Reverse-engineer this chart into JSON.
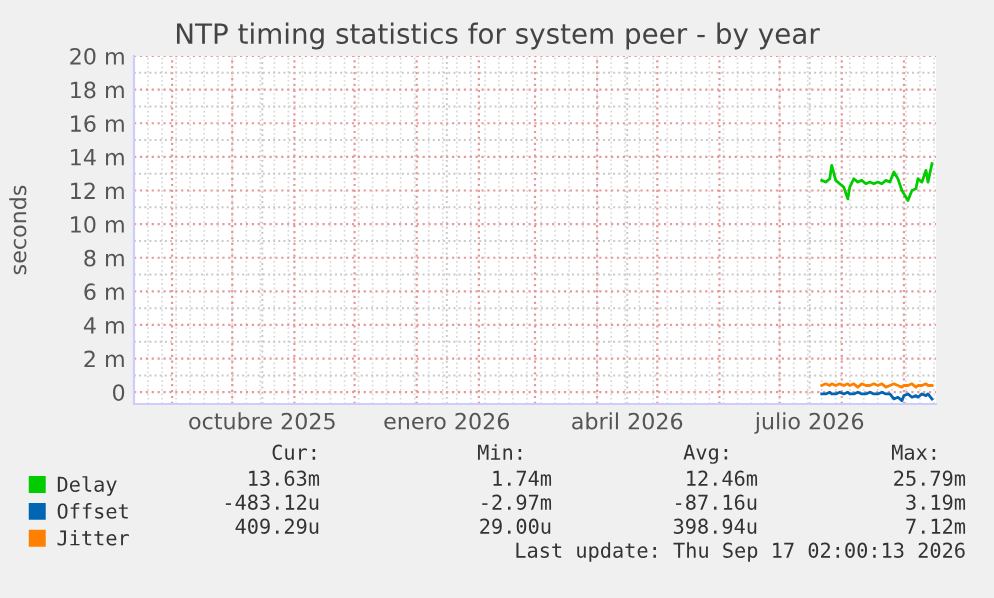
{
  "chart_data": {
    "type": "line",
    "title": "NTP timing statistics for system peer - by year",
    "ylabel": "seconds",
    "x": [
      "2026-07-22",
      "2026-07-24",
      "2026-07-26",
      "2026-07-27",
      "2026-07-29",
      "2026-07-31",
      "2026-08-02",
      "2026-08-04",
      "2026-08-05",
      "2026-08-07",
      "2026-08-09",
      "2026-08-11",
      "2026-08-13",
      "2026-08-15",
      "2026-08-17",
      "2026-08-19",
      "2026-08-21",
      "2026-08-23",
      "2026-08-25",
      "2026-08-27",
      "2026-08-29",
      "2026-08-31",
      "2026-09-01",
      "2026-09-03",
      "2026-09-05",
      "2026-09-07",
      "2026-09-08",
      "2026-09-10",
      "2026-09-12",
      "2026-09-13",
      "2026-09-15"
    ],
    "series": [
      {
        "name": "Delay",
        "color": "#00cc00",
        "values": [
          12.6,
          12.5,
          12.7,
          13.5,
          12.6,
          12.4,
          12.2,
          11.5,
          12.2,
          12.7,
          12.5,
          12.6,
          12.4,
          12.5,
          12.4,
          12.5,
          12.4,
          12.6,
          12.5,
          13.1,
          12.7,
          12.0,
          11.8,
          11.4,
          12.0,
          12.1,
          12.7,
          12.5,
          13.2,
          12.5,
          13.6
        ]
      },
      {
        "name": "Offset",
        "color": "#0066b3",
        "values": [
          -0.1,
          -0.1,
          0.0,
          -0.1,
          -0.1,
          0.0,
          -0.1,
          0.0,
          -0.1,
          -0.1,
          0.0,
          -0.1,
          -0.1,
          0.0,
          -0.1,
          -0.1,
          0.0,
          -0.1,
          -0.1,
          -0.4,
          -0.3,
          -0.5,
          -0.2,
          -0.1,
          -0.3,
          -0.2,
          -0.3,
          -0.1,
          -0.2,
          -0.1,
          -0.4
        ]
      },
      {
        "name": "Jitter",
        "color": "#ff8000",
        "values": [
          0.4,
          0.5,
          0.4,
          0.5,
          0.4,
          0.5,
          0.4,
          0.5,
          0.4,
          0.5,
          0.3,
          0.5,
          0.4,
          0.4,
          0.5,
          0.4,
          0.5,
          0.3,
          0.4,
          0.5,
          0.4,
          0.3,
          0.4,
          0.4,
          0.5,
          0.3,
          0.4,
          0.4,
          0.5,
          0.4,
          0.4
        ]
      }
    ],
    "xlim": [
      "2025-08-13",
      "2026-09-17"
    ],
    "xticks": [
      {
        "value": "2025-10-16",
        "label": "octubre 2025"
      },
      {
        "value": "2026-01-16",
        "label": "enero 2026"
      },
      {
        "value": "2026-04-16",
        "label": "abril 2026"
      },
      {
        "value": "2026-07-16",
        "label": "julio 2026"
      }
    ],
    "ylim": [
      -0.7,
      20
    ],
    "yticks": [
      {
        "value": 0,
        "label": "0"
      },
      {
        "value": 2,
        "label": "2 m"
      },
      {
        "value": 4,
        "label": "4 m"
      },
      {
        "value": 6,
        "label": "6 m"
      },
      {
        "value": 8,
        "label": "8 m"
      },
      {
        "value": 10,
        "label": "10 m"
      },
      {
        "value": 12,
        "label": "12 m"
      },
      {
        "value": 14,
        "label": "14 m"
      },
      {
        "value": 16,
        "label": "16 m"
      },
      {
        "value": 18,
        "label": "18 m"
      },
      {
        "value": 20,
        "label": "20 m"
      }
    ],
    "grid": true,
    "legend": "bottom left",
    "marker": "none",
    "line_style": "solid",
    "annotations": [
      "Cur:",
      "Min:",
      "Avg:",
      "Max:",
      "13.63m",
      "1.74m",
      "12.46m",
      "25.79m",
      "-483.12u",
      "-2.97m",
      "-87.16u",
      "3.19m",
      "409.29u",
      "29.00u",
      "398.94u",
      "7.12m",
      "Last update: Thu Sep 17 02:00:13 2026"
    ]
  }
}
